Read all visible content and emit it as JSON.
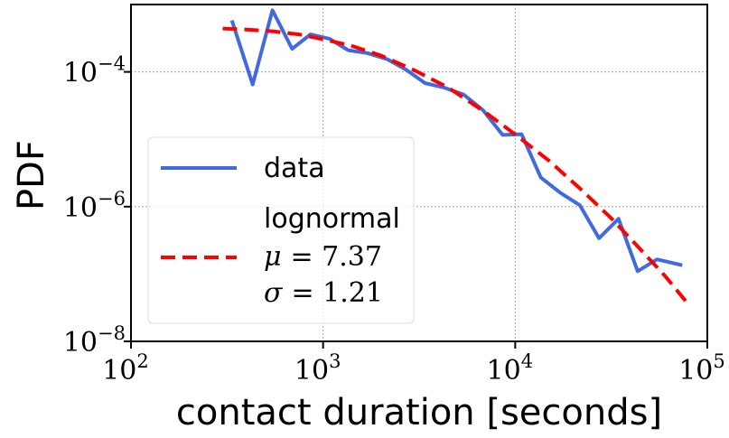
{
  "chart_data": {
    "type": "line",
    "xlabel": "contact duration [seconds]",
    "ylabel": "PDF",
    "xscale": "log",
    "yscale": "log",
    "xlim": [
      100,
      100000
    ],
    "ylim": [
      1e-08,
      0.001
    ],
    "grid": true,
    "legend_placement": "lower-left",
    "x_ticks": [
      {
        "base": "10",
        "exp": "2",
        "value": 100
      },
      {
        "base": "10",
        "exp": "3",
        "value": 1000
      },
      {
        "base": "10",
        "exp": "4",
        "value": 10000
      },
      {
        "base": "10",
        "exp": "5",
        "value": 100000
      }
    ],
    "y_ticks": [
      {
        "base": "10",
        "exp": "−8",
        "value": 1e-08
      },
      {
        "base": "10",
        "exp": "−6",
        "value": 1e-06
      },
      {
        "base": "10",
        "exp": "−4",
        "value": 0.0001
      }
    ],
    "series": [
      {
        "name": "data",
        "color": "#4169e1",
        "style": "solid",
        "points": [
          [
            335,
            0.00058
          ],
          [
            430,
            6.5e-05
          ],
          [
            545,
            0.00082
          ],
          [
            690,
            0.00022
          ],
          [
            860,
            0.00036
          ],
          [
            1080,
            0.00031
          ],
          [
            1350,
            0.00021
          ],
          [
            1700,
            0.00019
          ],
          [
            2150,
            0.000155
          ],
          [
            2700,
            0.000108
          ],
          [
            3400,
            6.8e-05
          ],
          [
            4300,
            5.8e-05
          ],
          [
            5400,
            4.6e-05
          ],
          [
            6800,
            2.7e-05
          ],
          [
            8600,
            1.16e-05
          ],
          [
            10800,
            1.19e-05
          ],
          [
            13600,
            2.7e-06
          ],
          [
            17200,
            1.6e-06
          ],
          [
            21700,
            1.05e-06
          ],
          [
            27300,
            3.4e-07
          ],
          [
            34500,
            6.6e-07
          ],
          [
            43400,
            1.1e-07
          ],
          [
            54700,
            1.65e-07
          ],
          [
            74000,
            1.35e-07
          ]
        ]
      },
      {
        "name": "lognormal",
        "color": "#ff0000",
        "style": "dashed",
        "mu": 7.37,
        "sigma": 1.21,
        "points": [
          [
            300,
            0.00044
          ],
          [
            400,
            0.000425
          ],
          [
            550,
            0.0004
          ],
          [
            750,
            0.00036
          ],
          [
            1000,
            0.000305
          ],
          [
            1400,
            0.000245
          ],
          [
            2000,
            0.000175
          ],
          [
            3000,
            0.000105
          ],
          [
            4500,
            5.8e-05
          ],
          [
            7000,
            2.5e-05
          ],
          [
            10000,
            1.18e-05
          ],
          [
            15000,
            4.8e-06
          ],
          [
            22000,
            1.8e-06
          ],
          [
            32000,
            6.5e-07
          ],
          [
            45000,
            2.3e-07
          ],
          [
            60000,
            9.5e-08
          ],
          [
            80000,
            3.5e-08
          ]
        ]
      }
    ],
    "legend": {
      "data_label": "data",
      "fit_label": "lognormal",
      "mu_symbol": "μ",
      "mu_value": "= 7.37",
      "sigma_symbol": "σ",
      "sigma_value": "= 1.21"
    }
  }
}
